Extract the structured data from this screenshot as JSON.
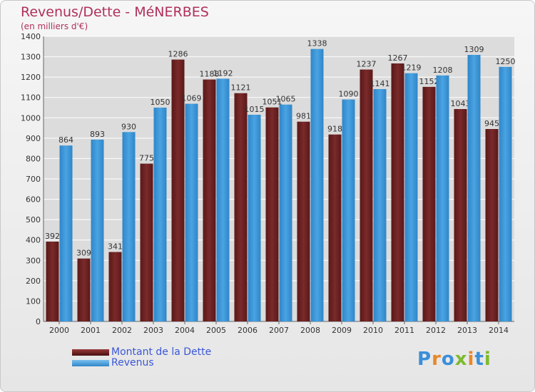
{
  "title": "Revenus/Dette - MéNERBES",
  "subtitle": "(en milliers d'€)",
  "legend": {
    "debt_label": "Montant de la Dette",
    "revenue_label": "Revenus"
  },
  "brand": "Proxiti",
  "colors": {
    "title": "#b0305a",
    "debt": "#7a2a2a",
    "revenue": "#4aa3e2",
    "legend_text": "#3a57d6",
    "grid": "#ffffff"
  },
  "chart_data": {
    "type": "bar",
    "title": "Revenus/Dette - MéNERBES",
    "subtitle": "(en milliers d'€)",
    "categories": [
      "2000",
      "2001",
      "2002",
      "2003",
      "2004",
      "2005",
      "2006",
      "2007",
      "2008",
      "2009",
      "2010",
      "2011",
      "2012",
      "2013",
      "2014"
    ],
    "series": [
      {
        "name": "Montant de la Dette",
        "values": [
          392,
          309,
          341,
          775,
          1286,
          1188,
          1121,
          1051,
          981,
          918,
          1237,
          1267,
          1152,
          1043,
          945
        ],
        "labels": [
          "392",
          "309",
          "341",
          "775",
          "1286",
          "1188",
          "1121",
          "1051",
          "981",
          "918",
          "1237",
          "1267",
          "1152",
          "1043",
          "945"
        ]
      },
      {
        "name": "Revenus",
        "values": [
          864,
          893,
          930,
          1050,
          1069,
          1192,
          1015,
          1065,
          1338,
          1090,
          1141,
          1219,
          1208,
          1309,
          1250
        ],
        "labels": [
          "864",
          "893",
          "930",
          "1050",
          "1069",
          "1192",
          "1015",
          "1065",
          "1338",
          "1090",
          "1141",
          "1219",
          "1208",
          "1309",
          "1250"
        ]
      }
    ],
    "yticks": [
      "0",
      "100",
      "200",
      "300",
      "400",
      "500",
      "600",
      "700",
      "800",
      "900",
      "1000",
      "1100",
      "1200",
      "1300",
      "1400"
    ],
    "ylim": [
      0,
      1400
    ],
    "grid": true,
    "legend_position": "bottom-left"
  }
}
